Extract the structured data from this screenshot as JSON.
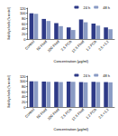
{
  "chart_data": [
    {
      "type": "bar",
      "xlabel": "Concentration (μg/ml)",
      "ylabel": "Viability of cells (% control)",
      "categories": [
        "Control",
        "50 Fluid",
        "200 Fluid",
        "2,5 PCA",
        "12,5 Fluid",
        "1,2 PCA",
        "2,5 +1,2"
      ],
      "series": [
        {
          "name": "24 h",
          "color": "#2e3a87",
          "values": [
            100,
            78,
            62,
            45,
            76,
            60,
            45
          ]
        },
        {
          "name": "48 h",
          "color": "#8a9bc4",
          "values": [
            98,
            70,
            50,
            35,
            65,
            52,
            38
          ]
        }
      ],
      "ylim": [
        0,
        120
      ],
      "yticks": [
        0,
        20,
        40,
        60,
        80,
        100,
        120
      ],
      "legend": "upper right",
      "grid": false
    },
    {
      "type": "bar",
      "xlabel": "Concentration (μg/ml)",
      "ylabel": "Viability of cells (% control)",
      "categories": [
        "Control",
        "50 Fluid",
        "200 Fluid",
        "2,5 PCA",
        "12,5 Fluid",
        "1,2 PCA",
        "2,5 +1,2"
      ],
      "series": [
        {
          "name": "24 h",
          "color": "#2e3a87",
          "values": [
            100,
            99,
            98,
            99,
            97,
            98,
            97
          ]
        },
        {
          "name": "48 h",
          "color": "#8a9bc4",
          "values": [
            100,
            98,
            97,
            98,
            96,
            97,
            96
          ]
        }
      ],
      "ylim": [
        0,
        120
      ],
      "yticks": [
        0,
        20,
        40,
        60,
        80,
        100,
        120
      ],
      "legend": "upper right",
      "grid": false
    }
  ]
}
